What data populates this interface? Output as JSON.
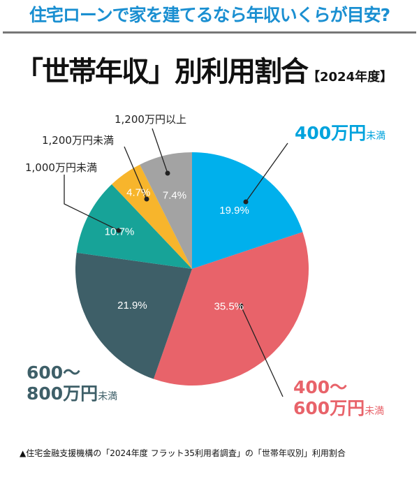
{
  "header": "住宅ローンで家を建てるなら年収いくらが目安?",
  "chart_data": {
    "type": "pie",
    "title": "「世帯年収」別利用割合",
    "subtitle": "【2024年度】",
    "start": "top, clockwise",
    "slices": [
      {
        "label": "400万円未満",
        "value": 19.9,
        "display": "19.9%",
        "color": "#00b0ec"
      },
      {
        "label": "400〜600万円未満",
        "value": 35.5,
        "display": "35.5%",
        "color": "#e8636a"
      },
      {
        "label": "600〜800万円未満",
        "value": 21.9,
        "display": "21.9%",
        "color": "#3e5f68"
      },
      {
        "label": "1,000万円未満",
        "value": 10.7,
        "display": "10.7%",
        "color": "#17a398"
      },
      {
        "label": "1,200万円未満",
        "value": 4.7,
        "display": "4.7%",
        "color": "#f7b52c"
      },
      {
        "label": "1,200万円以上",
        "value": 7.4,
        "display": "7.4%",
        "color": "#a3a3a3"
      }
    ]
  },
  "labels": {
    "s0a": "400万円",
    "s0b": "未満",
    "s1a": "400〜",
    "s1b": "600万円",
    "s1c": "未満",
    "s2a": "600〜",
    "s2b": "800万円",
    "s2c": "未満"
  },
  "footnote": "▲住宅金融支援機構の「2024年度 フラット35利用者調査」の「世帯年収別」利用割合"
}
